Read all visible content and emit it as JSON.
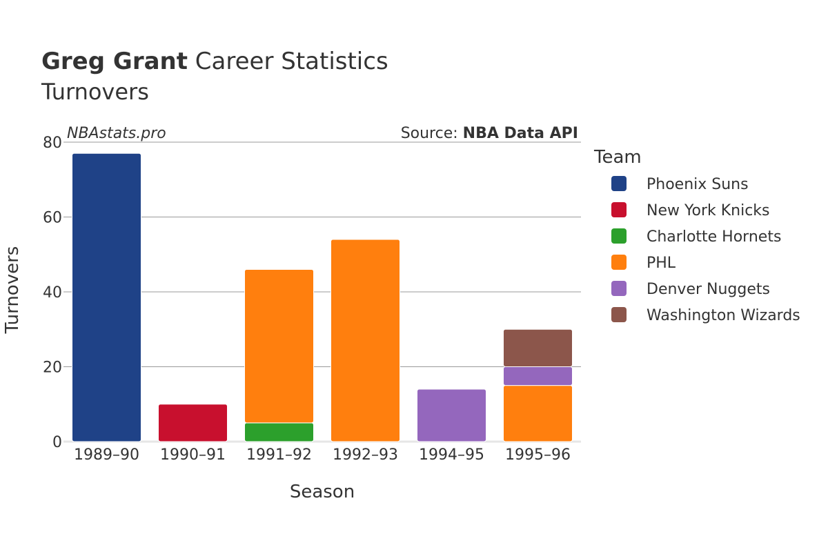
{
  "header": {
    "title_bold": "Greg Grant",
    "title_rest": " Career Statistics",
    "subtitle": "Turnovers"
  },
  "watermark": "NBAstats.pro",
  "source": {
    "prefix": "Source: ",
    "name": "NBA Data API"
  },
  "legend": {
    "title": "Team"
  },
  "chart_data": {
    "type": "bar",
    "stacked": true,
    "xlabel": "Season",
    "ylabel": "Turnovers",
    "ylim": [
      0,
      80
    ],
    "yticks": [
      0,
      20,
      40,
      60,
      80
    ],
    "grid": true,
    "legend_position": "right",
    "categories": [
      "1989–90",
      "1990–91",
      "1991–92",
      "1992–93",
      "1994–95",
      "1995–96"
    ],
    "series": [
      {
        "name": "Phoenix Suns",
        "color": "#1f4287",
        "values": [
          77,
          0,
          0,
          0,
          0,
          0
        ]
      },
      {
        "name": "New York Knicks",
        "color": "#c8102e",
        "values": [
          0,
          10,
          0,
          0,
          0,
          0
        ]
      },
      {
        "name": "Charlotte Hornets",
        "color": "#2ca02c",
        "values": [
          0,
          0,
          5,
          0,
          0,
          0
        ]
      },
      {
        "name": "PHL",
        "color": "#ff7f0e",
        "values": [
          0,
          0,
          41,
          54,
          0,
          15
        ]
      },
      {
        "name": "Denver Nuggets",
        "color": "#9467bd",
        "values": [
          0,
          0,
          0,
          0,
          14,
          5
        ]
      },
      {
        "name": "Washington Wizards",
        "color": "#8c564b",
        "values": [
          0,
          0,
          0,
          0,
          0,
          10
        ]
      }
    ]
  }
}
